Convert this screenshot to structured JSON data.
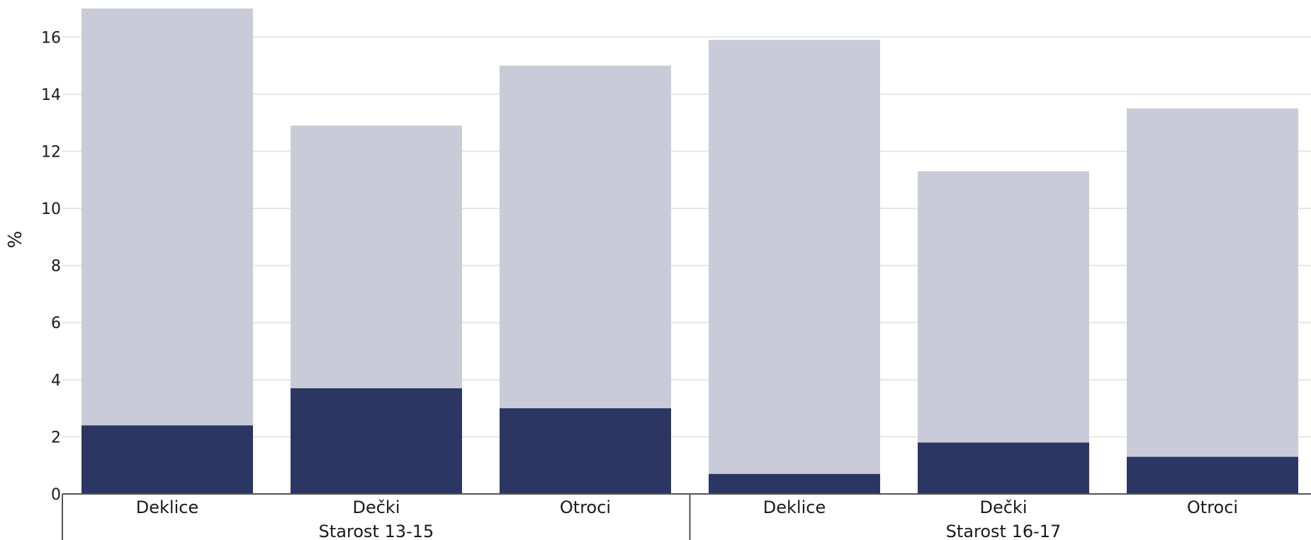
{
  "chart_data": {
    "type": "bar",
    "stacked": false,
    "ylabel": "%",
    "xlabel": "",
    "ylim": [
      0,
      17
    ],
    "yticks": [
      0,
      2,
      4,
      6,
      8,
      10,
      12,
      14,
      16
    ],
    "grid": true,
    "groups": [
      {
        "label": "Starost 13-15",
        "categories": [
          "Deklice",
          "Dečki",
          "Otroci"
        ]
      },
      {
        "label": "Starost 16-17",
        "categories": [
          "Deklice",
          "Dečki",
          "Otroci"
        ]
      }
    ],
    "series": [
      {
        "color": "#c9ccd8",
        "values": [
          17.0,
          12.9,
          15.0,
          15.9,
          11.3,
          13.5
        ]
      },
      {
        "color": "#2b3663",
        "values": [
          2.4,
          3.7,
          3.0,
          0.7,
          1.8,
          1.3
        ]
      }
    ]
  }
}
